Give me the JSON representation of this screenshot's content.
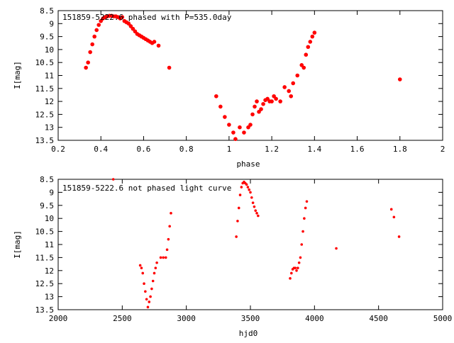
{
  "chart_data": [
    {
      "type": "scatter",
      "title": "151859-5222.6 phased with P=535.0day",
      "xlabel": "phase",
      "ylabel": "I[mag]",
      "xlim": [
        0.2,
        2.0
      ],
      "ylim": [
        13.5,
        8.5
      ],
      "y_inverted": true,
      "xticks": [
        "0.2",
        "0.4",
        "0.6",
        "0.8",
        "1",
        "1.2",
        "1.4",
        "1.6",
        "1.8",
        "2"
      ],
      "yticks": [
        "8.5",
        "9",
        "9.5",
        "10",
        "10.5",
        "11",
        "11.5",
        "12",
        "12.5",
        "13",
        "13.5"
      ],
      "grid": false,
      "marker_color": "#ff0000",
      "series": [
        {
          "x": [
            0.33,
            0.34,
            0.35,
            0.36,
            0.37,
            0.38,
            0.39,
            0.4,
            0.41,
            0.42,
            0.43,
            0.44,
            0.45,
            0.46,
            0.47,
            0.48,
            0.49,
            0.5,
            0.51,
            0.52,
            0.53,
            0.54,
            0.55,
            0.56,
            0.57,
            0.58,
            0.59,
            0.6,
            0.61,
            0.62,
            0.63,
            0.64,
            0.65,
            0.67,
            0.72,
            0.94,
            0.96,
            0.98,
            1.0,
            1.02,
            1.03,
            1.05,
            1.07,
            1.09,
            1.1,
            1.11,
            1.12,
            1.13,
            1.14,
            1.15,
            1.16,
            1.17,
            1.18,
            1.19,
            1.2,
            1.21,
            1.22,
            1.24,
            1.26,
            1.28,
            1.29,
            1.3,
            1.32,
            1.34,
            1.35,
            1.36,
            1.37,
            1.38,
            1.39,
            1.4,
            1.8
          ],
          "y": [
            10.7,
            10.5,
            10.1,
            9.8,
            9.5,
            9.25,
            9.05,
            8.9,
            8.8,
            8.75,
            8.72,
            8.7,
            8.7,
            8.72,
            8.72,
            8.75,
            8.8,
            8.75,
            8.9,
            8.95,
            9.0,
            9.1,
            9.2,
            9.3,
            9.4,
            9.45,
            9.5,
            9.55,
            9.6,
            9.65,
            9.7,
            9.75,
            9.7,
            9.85,
            10.7,
            11.8,
            12.2,
            12.6,
            12.9,
            13.2,
            13.45,
            13.0,
            13.2,
            13.0,
            12.9,
            12.5,
            12.2,
            12.0,
            12.4,
            12.3,
            12.1,
            11.95,
            11.9,
            12.0,
            12.0,
            11.8,
            11.9,
            12.0,
            11.45,
            11.6,
            11.8,
            11.3,
            11.0,
            10.6,
            10.7,
            10.2,
            9.9,
            9.7,
            9.5,
            9.35,
            11.15
          ]
        }
      ]
    },
    {
      "type": "scatter",
      "title": "151859-5222.6 not phased light curve",
      "xlabel": "hjd0",
      "ylabel": "I[mag]",
      "xlim": [
        2000,
        5000
      ],
      "ylim": [
        13.5,
        8.5
      ],
      "y_inverted": true,
      "xticks": [
        "2000",
        "2500",
        "3000",
        "3500",
        "4000",
        "4500",
        "5000"
      ],
      "yticks": [
        "8.5",
        "9",
        "9.5",
        "10",
        "10.5",
        "11",
        "11.5",
        "12",
        "12.5",
        "13",
        "13.5"
      ],
      "grid": false,
      "marker_color": "#ff0000",
      "series": [
        {
          "x": [
            2430,
            2640,
            2650,
            2660,
            2670,
            2680,
            2690,
            2700,
            2710,
            2720,
            2730,
            2740,
            2750,
            2760,
            2770,
            2800,
            2820,
            2840,
            2850,
            2860,
            2870,
            2880,
            3390,
            3400,
            3410,
            3420,
            3430,
            3440,
            3450,
            3460,
            3470,
            3480,
            3490,
            3500,
            3510,
            3520,
            3530,
            3540,
            3550,
            3560,
            3810,
            3820,
            3830,
            3840,
            3850,
            3860,
            3870,
            3880,
            3890,
            3900,
            3910,
            3920,
            3930,
            3940,
            4170,
            4600,
            4620,
            4660
          ],
          "y": [
            8.5,
            11.8,
            11.9,
            12.1,
            12.5,
            12.8,
            13.1,
            13.4,
            13.2,
            13.0,
            12.7,
            12.4,
            12.1,
            11.9,
            11.7,
            11.5,
            11.5,
            11.5,
            11.2,
            10.8,
            10.3,
            9.8,
            10.7,
            10.1,
            9.6,
            9.1,
            8.8,
            8.65,
            8.6,
            8.65,
            8.7,
            8.8,
            8.9,
            9.0,
            9.2,
            9.4,
            9.55,
            9.7,
            9.8,
            9.9,
            12.3,
            12.1,
            11.95,
            11.9,
            11.9,
            12.0,
            11.9,
            11.7,
            11.5,
            11.0,
            10.5,
            10.0,
            9.6,
            9.35,
            11.15,
            9.65,
            9.95,
            10.7
          ]
        }
      ]
    }
  ]
}
